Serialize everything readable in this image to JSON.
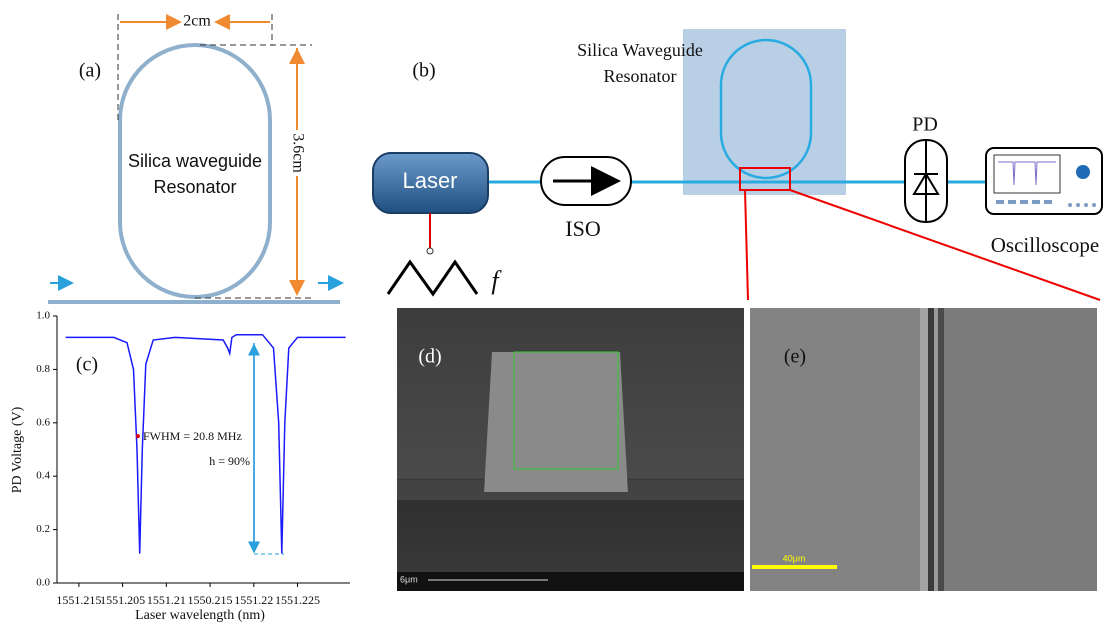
{
  "panel_a": {
    "label": "(a)",
    "width_label": "2cm",
    "height_label": "3.6cm",
    "resonator_label": [
      "Silica waveguide",
      "Resonator"
    ]
  },
  "panel_b": {
    "label": "(b)",
    "resonator_label": [
      "Silica Waveguide",
      "Resonator"
    ],
    "laser": "Laser",
    "isolator": "ISO",
    "detector": "PD",
    "oscilloscope": "Oscilloscope",
    "modulation": "f"
  },
  "chart_data": {
    "type": "line",
    "panel_label": "(c)",
    "xlabel": "Laser wavelength (nm)",
    "ylabel": "PD Voltage (V)",
    "xlim": [
      -0.5,
      6.2
    ],
    "xticks": [
      {
        "value": 0,
        "label": "1551.215"
      },
      {
        "value": 1,
        "label": "1551.205"
      },
      {
        "value": 2,
        "label": "1551.21"
      },
      {
        "value": 3,
        "label": "1550.215"
      },
      {
        "value": 4,
        "label": "1551.22"
      },
      {
        "value": 5,
        "label": "1551.225"
      }
    ],
    "ylim": [
      0,
      1
    ],
    "yticks": [
      {
        "value": 0,
        "label": "0.0"
      },
      {
        "value": 0.2,
        "label": "0.2"
      },
      {
        "value": 0.4,
        "label": "0.4"
      },
      {
        "value": 0.6,
        "label": "0.6"
      },
      {
        "value": 0.8,
        "label": "0.8"
      },
      {
        "value": 1,
        "label": "1.0"
      }
    ],
    "series": [
      {
        "color": "#1a1aff",
        "x": [
          -0.3,
          0.8,
          1.1,
          1.25,
          1.33,
          1.39,
          1.45,
          1.53,
          1.7,
          2.2,
          3.3,
          3.4,
          3.45,
          3.5,
          3.6,
          4.2,
          4.45,
          4.57,
          4.64,
          4.71,
          4.8,
          5.0,
          6.1
        ],
        "values": [
          0.92,
          0.92,
          0.9,
          0.8,
          0.5,
          0.11,
          0.5,
          0.82,
          0.91,
          0.92,
          0.91,
          0.88,
          0.86,
          0.92,
          0.93,
          0.93,
          0.88,
          0.6,
          0.11,
          0.6,
          0.88,
          0.92,
          0.92
        ]
      }
    ],
    "marker": {
      "x": 1.35,
      "y": 0.55,
      "color": "#e00000"
    },
    "annotations": [
      "FWHM = 20.8 MHz",
      "h = 90%"
    ]
  },
  "panel_d": {
    "label": "(d)",
    "scale_label": "6μm"
  },
  "panel_e": {
    "label": "(e)",
    "scale_label": "40μm"
  }
}
